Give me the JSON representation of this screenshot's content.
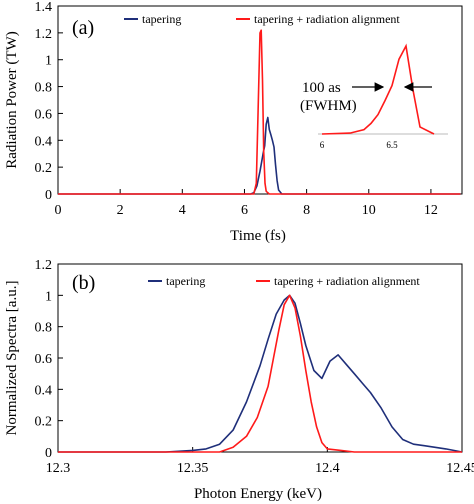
{
  "chart_data": [
    {
      "panel_label": "(a)",
      "type": "line",
      "xlabel": "Time (fs)",
      "ylabel": "Radiation Power (TW)",
      "xlim": [
        0,
        13
      ],
      "ylim": [
        0,
        1.4
      ],
      "xticks": [
        "0",
        "2",
        "4",
        "6",
        "8",
        "10",
        "12"
      ],
      "yticks": [
        "0",
        "0.2",
        "0.4",
        "0.6",
        "0.8",
        "1",
        "1.2",
        "1.4"
      ],
      "grid": false,
      "legend_position": "top",
      "series": [
        {
          "name": "tapering",
          "color": "#1f2f7a",
          "x": [
            0,
            6.2,
            6.3,
            6.4,
            6.5,
            6.6,
            6.65,
            6.7,
            6.75,
            6.8,
            6.85,
            6.9,
            6.95,
            7.0,
            7.05,
            7.1,
            7.2,
            12.95
          ],
          "y": [
            0,
            0,
            0.01,
            0.06,
            0.17,
            0.3,
            0.36,
            0.52,
            0.57,
            0.48,
            0.44,
            0.4,
            0.35,
            0.22,
            0.1,
            0.03,
            0.0,
            0
          ]
        },
        {
          "name": "tapering + radiation alignment",
          "color": "#ff1a1a",
          "x": [
            0,
            6.3,
            6.38,
            6.44,
            6.5,
            6.54,
            6.58,
            6.62,
            6.66,
            6.7,
            6.8,
            12.95
          ],
          "y": [
            0,
            0,
            0.08,
            0.62,
            1.2,
            1.22,
            0.85,
            0.32,
            0.08,
            0.02,
            0,
            0
          ]
        }
      ],
      "inset": {
        "xticks": [
          "6",
          "6.5"
        ],
        "x": [
          6.0,
          6.2,
          6.3,
          6.35,
          6.4,
          6.45,
          6.5,
          6.55,
          6.6,
          6.65,
          6.7,
          6.8
        ],
        "y": [
          0.0,
          0.01,
          0.05,
          0.12,
          0.22,
          0.38,
          0.55,
          0.85,
          1.0,
          0.5,
          0.08,
          0.0
        ],
        "color": "#ff1a1a",
        "annotation_line1": "100 as",
        "annotation_line2": "(FWHM)"
      }
    },
    {
      "panel_label": "(b)",
      "type": "line",
      "xlabel": "Photon Energy (keV)",
      "ylabel": "Normalized Spectra [a.u.]",
      "xlim": [
        12.3,
        12.45
      ],
      "ylim": [
        0,
        1.2
      ],
      "xticks": [
        "12.3",
        "12.35",
        "12.4",
        "12.45"
      ],
      "yticks": [
        "0",
        "0.2",
        "0.4",
        "0.6",
        "0.8",
        "1",
        "1.2"
      ],
      "grid": false,
      "legend_position": "top",
      "series": [
        {
          "name": "tapering",
          "color": "#1f2f7a",
          "x": [
            12.3,
            12.34,
            12.35,
            12.355,
            12.36,
            12.365,
            12.37,
            12.375,
            12.378,
            12.381,
            12.384,
            12.386,
            12.388,
            12.39,
            12.392,
            12.395,
            12.398,
            12.401,
            12.404,
            12.407,
            12.41,
            12.413,
            12.416,
            12.42,
            12.424,
            12.428,
            12.432,
            12.436,
            12.44,
            12.444,
            12.45
          ],
          "y": [
            0,
            0.0,
            0.01,
            0.02,
            0.05,
            0.14,
            0.32,
            0.55,
            0.72,
            0.88,
            0.97,
            1.0,
            0.95,
            0.82,
            0.68,
            0.52,
            0.47,
            0.58,
            0.62,
            0.56,
            0.5,
            0.44,
            0.38,
            0.28,
            0.16,
            0.08,
            0.05,
            0.04,
            0.03,
            0.02,
            0.0
          ]
        },
        {
          "name": "tapering + radiation alignment",
          "color": "#ff1a1a",
          "x": [
            12.3,
            12.36,
            12.365,
            12.37,
            12.374,
            12.378,
            12.38,
            12.382,
            12.384,
            12.386,
            12.388,
            12.39,
            12.392,
            12.394,
            12.396,
            12.398,
            12.4,
            12.405,
            12.41,
            12.45
          ],
          "y": [
            0,
            0.0,
            0.03,
            0.1,
            0.22,
            0.42,
            0.6,
            0.78,
            0.94,
            1.0,
            0.92,
            0.74,
            0.52,
            0.32,
            0.16,
            0.06,
            0.02,
            0.01,
            0.0,
            0
          ]
        }
      ]
    }
  ]
}
